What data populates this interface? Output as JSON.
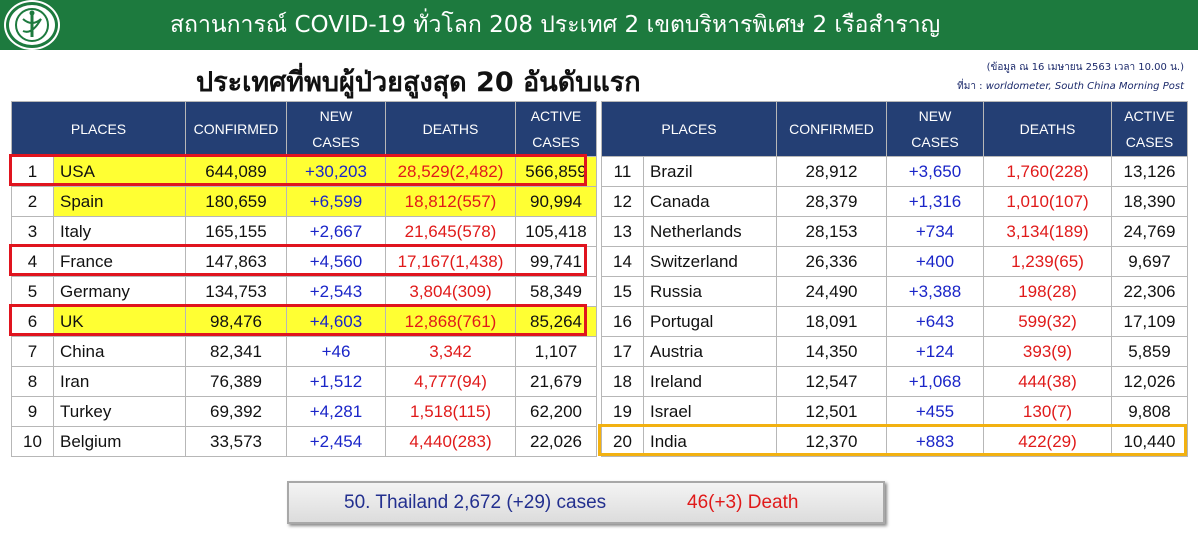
{
  "header": {
    "title": "สถานการณ์ COVID-19 ทั่วโลก 208 ประเทศ 2 เขตบริหารพิเศษ 2 เรือสำราญ",
    "subtitle": "ประเทศที่พบผู้ป่วยสูงสุด 20 อันดับแรก",
    "data_as_of": "(ข้อมูล ณ 16 เมษายน 2563 เวลา 10.00 น.)",
    "source_label": "ที่มา :",
    "source_text": "worldometer,  South China Morning Post"
  },
  "columns": {
    "places": "PLACES",
    "confirmed": "CONFIRMED",
    "new_line1": "NEW",
    "new_line2": "CASES",
    "deaths": "DEATHS",
    "active_line1": "ACTIVE",
    "active_line2": "CASES"
  },
  "left_table": [
    {
      "rank": "1",
      "place": "USA",
      "confirmed": "644,089",
      "new": "+30,203",
      "deaths": "28,529(2,482)",
      "active": "566,859"
    },
    {
      "rank": "2",
      "place": "Spain",
      "confirmed": "180,659",
      "new": "+6,599",
      "deaths": "18,812(557)",
      "active": "90,994"
    },
    {
      "rank": "3",
      "place": "Italy",
      "confirmed": "165,155",
      "new": "+2,667",
      "deaths": "21,645(578)",
      "active": "105,418"
    },
    {
      "rank": "4",
      "place": "France",
      "confirmed": "147,863",
      "new": "+4,560",
      "deaths": "17,167(1,438)",
      "active": "99,741"
    },
    {
      "rank": "5",
      "place": "Germany",
      "confirmed": "134,753",
      "new": "+2,543",
      "deaths": "3,804(309)",
      "active": "58,349"
    },
    {
      "rank": "6",
      "place": "UK",
      "confirmed": "98,476",
      "new": "+4,603",
      "deaths": "12,868(761)",
      "active": "85,264"
    },
    {
      "rank": "7",
      "place": "China",
      "confirmed": "82,341",
      "new": "+46",
      "deaths": "3,342",
      "active": "1,107"
    },
    {
      "rank": "8",
      "place": "Iran",
      "confirmed": "76,389",
      "new": "+1,512",
      "deaths": "4,777(94)",
      "active": "21,679"
    },
    {
      "rank": "9",
      "place": "Turkey",
      "confirmed": "69,392",
      "new": "+4,281",
      "deaths": "1,518(115)",
      "active": "62,200"
    },
    {
      "rank": "10",
      "place": "Belgium",
      "confirmed": "33,573",
      "new": "+2,454",
      "deaths": "4,440(283)",
      "active": "22,026"
    }
  ],
  "right_table": [
    {
      "rank": "11",
      "place": "Brazil",
      "confirmed": "28,912",
      "new": "+3,650",
      "deaths": "1,760(228)",
      "active": "13,126"
    },
    {
      "rank": "12",
      "place": "Canada",
      "confirmed": "28,379",
      "new": "+1,316",
      "deaths": "1,010(107)",
      "active": "18,390"
    },
    {
      "rank": "13",
      "place": "Netherlands",
      "confirmed": "28,153",
      "new": "+734",
      "deaths": "3,134(189)",
      "active": "24,769"
    },
    {
      "rank": "14",
      "place": "Switzerland",
      "confirmed": "26,336",
      "new": "+400",
      "deaths": "1,239(65)",
      "active": "9,697"
    },
    {
      "rank": "15",
      "place": "Russia",
      "confirmed": "24,490",
      "new": "+3,388",
      "deaths": "198(28)",
      "active": "22,306"
    },
    {
      "rank": "16",
      "place": "Portugal",
      "confirmed": "18,091",
      "new": "+643",
      "deaths": "599(32)",
      "active": "17,109"
    },
    {
      "rank": "17",
      "place": "Austria",
      "confirmed": "14,350",
      "new": "+124",
      "deaths": "393(9)",
      "active": "5,859"
    },
    {
      "rank": "18",
      "place": "Ireland",
      "confirmed": "12,547",
      "new": "+1,068",
      "deaths": "444(38)",
      "active": "12,026"
    },
    {
      "rank": "19",
      "place": "Israel",
      "confirmed": "12,501",
      "new": "+455",
      "deaths": "130(7)",
      "active": "9,808"
    },
    {
      "rank": "20",
      "place": "India",
      "confirmed": "12,370",
      "new": "+883",
      "deaths": "422(29)",
      "active": "10,440"
    }
  ],
  "footer": {
    "thailand": "50. Thailand 2,672 (+29) cases",
    "deaths": "46(+3)  Death"
  },
  "colors": {
    "banner_green": "#1d7a3e",
    "header_navy": "#243f74",
    "highlight_yellow": "#ffff33",
    "new_cases_blue": "#1a25c8",
    "deaths_red": "#e01a1a",
    "outline_red": "#e0141e",
    "outline_gold": "#f2b111"
  },
  "icons": {
    "logo": "ministry-of-public-health-emblem-icon"
  }
}
